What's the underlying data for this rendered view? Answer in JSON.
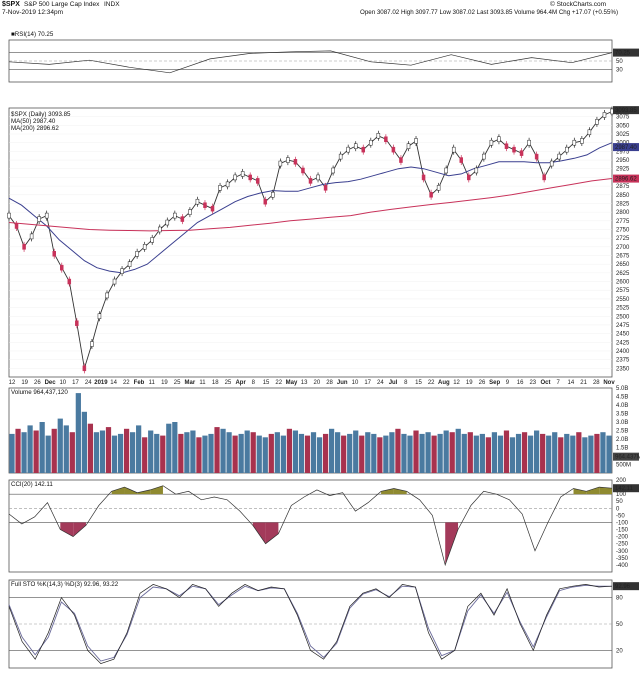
{
  "header": {
    "symbol": "$SPX",
    "name": "S&P 500 Large Cap Index",
    "exchange": "INDX",
    "datetime": "7-Nov-2019 12:34pm",
    "ohlc": "Open 3087.02  High 3097.77  Low 3087.02  Last 3093.85  Volume 964.4M  Chg +17.07 (+0.55%)",
    "watermark": "© StockCharts.com"
  },
  "colors": {
    "price_line": "#333333",
    "ma50": "#3a3f8f",
    "ma200": "#c8325a",
    "volume_up": "#4a7aa0",
    "volume_down": "#a8324e",
    "cci_fill_pos": "#8f8a30",
    "cci_fill_neg": "#a33a5a",
    "sto_fast": "#222222",
    "sto_slow": "#6a6a9a"
  },
  "chart_data": [
    {
      "type": "line",
      "title": "RSI(14) 70.25",
      "ylim": [
        0,
        100
      ],
      "reference_levels": [
        70,
        50,
        30
      ],
      "right_label": "70.25",
      "x": [
        "Nov 12",
        "Nov 19",
        "Nov 26",
        "Dec 10",
        "Dec 24",
        "Jan 2019",
        "Feb",
        "Mar",
        "Apr",
        "May",
        "Jun",
        "Jul",
        "Aug",
        "Sep",
        "Oct",
        "Nov"
      ],
      "values": [
        48,
        42,
        52,
        35,
        22,
        55,
        68,
        72,
        74,
        48,
        40,
        65,
        42,
        58,
        46,
        70
      ]
    },
    {
      "type": "line",
      "title": "$SPX (Daily) 3093.85",
      "legend": [
        "$SPX (Daily) 3093.85",
        "MA(50) 2987.40",
        "MA(200) 2896.62"
      ],
      "ylim": [
        2325,
        3100
      ],
      "yticks": [
        2350,
        2375,
        2400,
        2425,
        2450,
        2475,
        2500,
        2525,
        2550,
        2575,
        2600,
        2625,
        2650,
        2675,
        2700,
        2725,
        2750,
        2775,
        2800,
        2825,
        2850,
        2875,
        2900,
        2925,
        2950,
        2975,
        3000,
        3025,
        3050,
        3075
      ],
      "right_labels": [
        "3093.85",
        "2987.40",
        "2896.62"
      ],
      "x_labels": [
        "12",
        "19",
        "26",
        "Dec",
        "10",
        "17",
        "24",
        "2019",
        "14",
        "22",
        "Feb",
        "11",
        "19",
        "25",
        "Mar",
        "11",
        "18",
        "25",
        "Apr",
        "8",
        "15",
        "22",
        "May",
        "13",
        "20",
        "28",
        "Jun",
        "10",
        "17",
        "24",
        "Jul",
        "8",
        "15",
        "22",
        "Aug",
        "12",
        "19",
        "26",
        "Sep",
        "9",
        "16",
        "23",
        "Oct",
        "7",
        "14",
        "21",
        "28",
        "Nov"
      ],
      "series": [
        {
          "name": "$SPX (Daily) 3093.85",
          "values": [
            2790,
            2760,
            2700,
            2730,
            2780,
            2790,
            2680,
            2640,
            2600,
            2480,
            2350,
            2420,
            2500,
            2560,
            2600,
            2630,
            2650,
            2680,
            2700,
            2720,
            2750,
            2770,
            2790,
            2780,
            2800,
            2830,
            2820,
            2810,
            2870,
            2880,
            2900,
            2910,
            2900,
            2890,
            2830,
            2850,
            2940,
            2950,
            2945,
            2920,
            2890,
            2900,
            2870,
            2920,
            2960,
            2980,
            2990,
            2980,
            3000,
            3020,
            3010,
            2980,
            2950,
            2990,
            3005,
            2900,
            2850,
            2870,
            2920,
            2980,
            2950,
            2900,
            2920,
            2960,
            3000,
            3010,
            2990,
            2980,
            2970,
            3000,
            2960,
            2900,
            2940,
            2960,
            2980,
            3000,
            3005,
            3030,
            3060,
            3080,
            3090
          ]
        },
        {
          "name": "MA(50) 2987.40",
          "values": [
            2840,
            2820,
            2790,
            2760,
            2720,
            2690,
            2660,
            2640,
            2630,
            2625,
            2635,
            2650,
            2680,
            2710,
            2740,
            2770,
            2790,
            2810,
            2830,
            2845,
            2855,
            2862,
            2860,
            2860,
            2870,
            2880,
            2885,
            2888,
            2895,
            2905,
            2915,
            2925,
            2930,
            2925,
            2915,
            2905,
            2910,
            2925,
            2935,
            2945,
            2945,
            2945,
            2942,
            2942,
            2948,
            2955,
            2965,
            2985,
            3000
          ]
        },
        {
          "name": "MA(200) 2896.62",
          "values": [
            2770,
            2765,
            2760,
            2755,
            2750,
            2748,
            2747,
            2746,
            2747,
            2748,
            2752,
            2756,
            2762,
            2768,
            2775,
            2780,
            2785,
            2790,
            2800,
            2808,
            2815,
            2822,
            2828,
            2835,
            2842,
            2850,
            2860,
            2870,
            2880,
            2890,
            2897
          ]
        }
      ]
    },
    {
      "type": "bar",
      "title": "Volume 964,437,120",
      "ylim": [
        0,
        5000000000
      ],
      "yticks": [
        "500M",
        "1.0B",
        "1.5B",
        "2.0B",
        "2.5B",
        "3.0B",
        "3.5B",
        "4.0B",
        "4.5B",
        "5.0B"
      ],
      "right_label": "964.437M",
      "values_billions": [
        2.3,
        2.6,
        2.4,
        2.8,
        2.5,
        3.0,
        2.2,
        2.6,
        3.2,
        2.8,
        2.4,
        4.7,
        3.6,
        2.9,
        2.4,
        2.5,
        2.7,
        2.2,
        2.3,
        2.6,
        2.4,
        2.8,
        2.1,
        2.5,
        2.3,
        2.2,
        2.9,
        3.0,
        2.3,
        2.4,
        2.5,
        2.1,
        2.2,
        2.3,
        2.7,
        2.6,
        2.4,
        2.2,
        2.3,
        2.5,
        2.4,
        2.2,
        2.1,
        2.3,
        2.4,
        2.2,
        2.6,
        2.5,
        2.3,
        2.2,
        2.4,
        2.1,
        2.3,
        2.6,
        2.4,
        2.2,
        2.3,
        2.5,
        2.2,
        2.4,
        2.3,
        2.1,
        2.2,
        2.4,
        2.6,
        2.3,
        2.2,
        2.5,
        2.3,
        2.4,
        2.2,
        2.3,
        2.5,
        2.4,
        2.6,
        2.3,
        2.4,
        2.2,
        2.3,
        2.1,
        2.4,
        2.2,
        2.5,
        2.1,
        2.3,
        2.4,
        2.2,
        2.5,
        2.3,
        2.2,
        2.4,
        2.1,
        2.3,
        2.2,
        2.4,
        2.1,
        2.2,
        2.3,
        2.4,
        2.2
      ]
    },
    {
      "type": "area",
      "title": "CCI(20) 142.11",
      "ylim": [
        -450,
        200
      ],
      "yticks": [
        200,
        150,
        100,
        50,
        0,
        -50,
        -100,
        -150,
        -200,
        -250,
        -300,
        -350,
        -400
      ],
      "reference_levels": [
        100,
        0,
        -100
      ],
      "right_label": "142.11",
      "values": [
        -40,
        -110,
        -60,
        40,
        -150,
        -200,
        -120,
        20,
        120,
        150,
        110,
        130,
        160,
        100,
        120,
        60,
        80,
        60,
        -20,
        -120,
        -250,
        -180,
        20,
        80,
        130,
        90,
        110,
        -20,
        40,
        120,
        140,
        120,
        60,
        -50,
        -400,
        -150,
        20,
        120,
        100,
        60,
        -40,
        -300,
        -100,
        80,
        140,
        120,
        150,
        142
      ]
    },
    {
      "type": "line",
      "title": "Full STO %K(14,3) %D(3) 92.96, 93.22",
      "ylim": [
        0,
        100
      ],
      "yticks": [
        80,
        50,
        20
      ],
      "reference_levels": [
        80,
        50,
        20
      ],
      "right_label": "92.96",
      "series": [
        {
          "name": "%K(14,3) 92.96",
          "values": [
            70,
            30,
            10,
            40,
            80,
            60,
            20,
            5,
            10,
            40,
            85,
            95,
            90,
            80,
            95,
            90,
            70,
            85,
            95,
            88,
            92,
            90,
            60,
            20,
            10,
            30,
            70,
            85,
            90,
            80,
            95,
            92,
            40,
            10,
            20,
            70,
            85,
            60,
            90,
            50,
            20,
            60,
            90,
            93,
            95,
            92,
            93
          ]
        },
        {
          "name": "%D(3) 93.22",
          "values": [
            72,
            35,
            15,
            35,
            75,
            62,
            25,
            8,
            12,
            38,
            80,
            92,
            90,
            82,
            93,
            90,
            72,
            83,
            93,
            88,
            91,
            90,
            62,
            25,
            12,
            28,
            68,
            84,
            89,
            81,
            93,
            92,
            45,
            14,
            20,
            65,
            83,
            62,
            86,
            52,
            24,
            58,
            88,
            92,
            94,
            93,
            93
          ]
        }
      ]
    }
  ]
}
